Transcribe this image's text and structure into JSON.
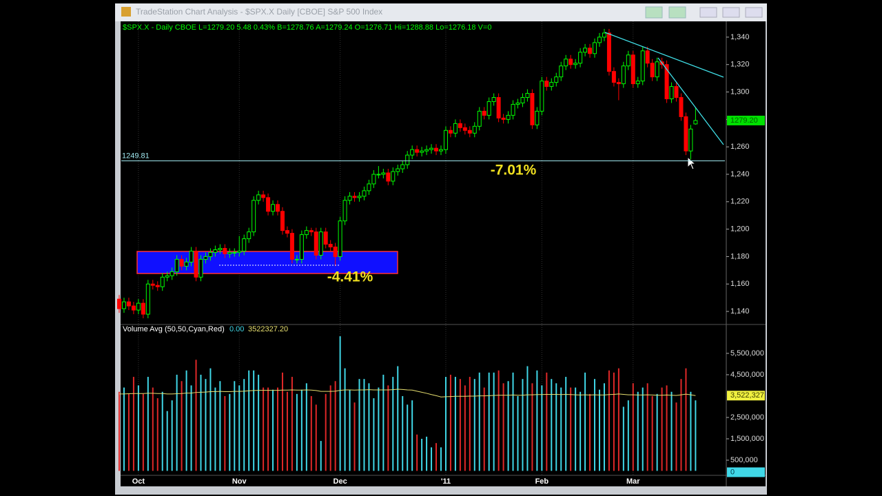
{
  "window": {
    "title": "TradeStation Chart Analysis - $SPX.X Daily [CBOE] S&P 500 Index"
  },
  "chart_data": {
    "type": "candlestick",
    "header": "$SPX.X - Daily  CBOE  L=1279.20  5.48  0.43%  B=1278.76  A=1279.24  O=1276.71  Hi=1288.88  Lo=1276.18  V=0",
    "up_color": "#00ff00",
    "down_color": "#ff0000",
    "categories": [
      null,
      null,
      null,
      null,
      "Oct",
      null,
      null,
      null,
      null,
      null,
      null,
      null,
      null,
      null,
      null,
      null,
      null,
      null,
      null,
      null,
      null,
      null,
      null,
      null,
      null,
      "Nov",
      null,
      null,
      null,
      null,
      null,
      null,
      null,
      null,
      null,
      null,
      null,
      null,
      null,
      null,
      null,
      null,
      null,
      null,
      null,
      null,
      "Dec",
      null,
      null,
      null,
      null,
      null,
      null,
      null,
      null,
      null,
      null,
      null,
      null,
      null,
      null,
      null,
      null,
      null,
      null,
      null,
      null,
      null,
      "'11",
      null,
      null,
      null,
      null,
      null,
      null,
      null,
      null,
      null,
      null,
      null,
      null,
      null,
      null,
      null,
      null,
      null,
      null,
      null,
      "Feb",
      null,
      null,
      null,
      null,
      null,
      null,
      null,
      null,
      null,
      null,
      null,
      null,
      null,
      null,
      null,
      null,
      null,
      null,
      "Mar",
      null,
      null,
      null,
      null,
      null,
      null,
      null,
      null,
      null,
      null,
      null,
      null,
      null
    ],
    "ohlc": [
      [
        1149,
        1152,
        1139,
        1142
      ],
      [
        1142,
        1150,
        1139,
        1147
      ],
      [
        1147,
        1150,
        1141,
        1144
      ],
      [
        1144,
        1147,
        1138,
        1141
      ],
      [
        1141,
        1149,
        1138,
        1146
      ],
      [
        1146,
        1149,
        1135,
        1138
      ],
      [
        1138,
        1163,
        1135,
        1160
      ],
      [
        1160,
        1163,
        1156,
        1159
      ],
      [
        1159,
        1162,
        1155,
        1158
      ],
      [
        1158,
        1168,
        1155,
        1165
      ],
      [
        1165,
        1169,
        1162,
        1166
      ],
      [
        1166,
        1172,
        1163,
        1169
      ],
      [
        1169,
        1181,
        1166,
        1178
      ],
      [
        1178,
        1181,
        1170,
        1173
      ],
      [
        1173,
        1179,
        1170,
        1176
      ],
      [
        1176,
        1187,
        1173,
        1184
      ],
      [
        1184,
        1187,
        1162,
        1165
      ],
      [
        1165,
        1181,
        1162,
        1178
      ],
      [
        1178,
        1183,
        1175,
        1180
      ],
      [
        1180,
        1186,
        1177,
        1183
      ],
      [
        1183,
        1188,
        1180,
        1185
      ],
      [
        1185,
        1189,
        1182,
        1186
      ],
      [
        1186,
        1189,
        1179,
        1182
      ],
      [
        1182,
        1186,
        1179,
        1183
      ],
      [
        1183,
        1186,
        1180,
        1183
      ],
      [
        1183,
        1195,
        1180,
        1184
      ],
      [
        1184,
        1196,
        1181,
        1193
      ],
      [
        1193,
        1201,
        1190,
        1198
      ],
      [
        1198,
        1224,
        1195,
        1221
      ],
      [
        1221,
        1228,
        1218,
        1225
      ],
      [
        1225,
        1228,
        1220,
        1223
      ],
      [
        1223,
        1226,
        1210,
        1213
      ],
      [
        1213,
        1221,
        1210,
        1218
      ],
      [
        1218,
        1221,
        1210,
        1213
      ],
      [
        1213,
        1216,
        1196,
        1199
      ],
      [
        1199,
        1202,
        1194,
        1197
      ],
      [
        1197,
        1200,
        1175,
        1178
      ],
      [
        1178,
        1181,
        1175,
        1178
      ],
      [
        1178,
        1199,
        1175,
        1196
      ],
      [
        1196,
        1202,
        1193,
        1199
      ],
      [
        1199,
        1201,
        1195,
        1198
      ],
      [
        1198,
        1201,
        1178,
        1181
      ],
      [
        1181,
        1201,
        1178,
        1198
      ],
      [
        1198,
        1201,
        1186,
        1189
      ],
      [
        1189,
        1192,
        1184,
        1187
      ],
      [
        1187,
        1190,
        1173,
        1180
      ],
      [
        1180,
        1209,
        1177,
        1206
      ],
      [
        1206,
        1224,
        1203,
        1221
      ],
      [
        1221,
        1227,
        1218,
        1224
      ],
      [
        1224,
        1227,
        1220,
        1223
      ],
      [
        1223,
        1227,
        1220,
        1224
      ],
      [
        1224,
        1231,
        1221,
        1228
      ],
      [
        1228,
        1236,
        1225,
        1233
      ],
      [
        1233,
        1243,
        1230,
        1240
      ],
      [
        1240,
        1246,
        1237,
        1240
      ],
      [
        1240,
        1244,
        1237,
        1241
      ],
      [
        1241,
        1244,
        1232,
        1235
      ],
      [
        1235,
        1245,
        1232,
        1242
      ],
      [
        1242,
        1247,
        1239,
        1244
      ],
      [
        1244,
        1250,
        1241,
        1247
      ],
      [
        1247,
        1257,
        1244,
        1254
      ],
      [
        1254,
        1261,
        1251,
        1258
      ],
      [
        1258,
        1261,
        1253,
        1256
      ],
      [
        1256,
        1260,
        1253,
        1257
      ],
      [
        1257,
        1261,
        1254,
        1258
      ],
      [
        1258,
        1262,
        1255,
        1259
      ],
      [
        1259,
        1262,
        1254,
        1257
      ],
      [
        1257,
        1261,
        1254,
        1258
      ],
      [
        1258,
        1275,
        1255,
        1272
      ],
      [
        1272,
        1275,
        1267,
        1270
      ],
      [
        1270,
        1280,
        1267,
        1277
      ],
      [
        1277,
        1280,
        1271,
        1274
      ],
      [
        1274,
        1277,
        1269,
        1272
      ],
      [
        1272,
        1275,
        1267,
        1270
      ],
      [
        1270,
        1278,
        1267,
        1275
      ],
      [
        1275,
        1289,
        1272,
        1286
      ],
      [
        1286,
        1289,
        1280,
        1283
      ],
      [
        1283,
        1296,
        1280,
        1293
      ],
      [
        1293,
        1299,
        1290,
        1296
      ],
      [
        1296,
        1299,
        1278,
        1281
      ],
      [
        1281,
        1284,
        1277,
        1280
      ],
      [
        1280,
        1286,
        1277,
        1283
      ],
      [
        1283,
        1294,
        1280,
        1291
      ],
      [
        1291,
        1295,
        1288,
        1292
      ],
      [
        1292,
        1299,
        1289,
        1296
      ],
      [
        1296,
        1302,
        1293,
        1299
      ],
      [
        1299,
        1302,
        1273,
        1276
      ],
      [
        1276,
        1289,
        1273,
        1286
      ],
      [
        1286,
        1311,
        1283,
        1308
      ],
      [
        1308,
        1311,
        1301,
        1304
      ],
      [
        1304,
        1310,
        1301,
        1307
      ],
      [
        1307,
        1314,
        1304,
        1311
      ],
      [
        1311,
        1322,
        1308,
        1319
      ],
      [
        1319,
        1327,
        1316,
        1324
      ],
      [
        1324,
        1327,
        1317,
        1320
      ],
      [
        1320,
        1324,
        1317,
        1321
      ],
      [
        1321,
        1332,
        1318,
        1329
      ],
      [
        1329,
        1335,
        1326,
        1332
      ],
      [
        1332,
        1335,
        1325,
        1328
      ],
      [
        1328,
        1339,
        1325,
        1336
      ],
      [
        1336,
        1343,
        1333,
        1340
      ],
      [
        1340,
        1346,
        1337,
        1343
      ],
      [
        1343,
        1346,
        1312,
        1315
      ],
      [
        1315,
        1318,
        1304,
        1307
      ],
      [
        1307,
        1310,
        1294,
        1306
      ],
      [
        1306,
        1322,
        1303,
        1319
      ],
      [
        1319,
        1330,
        1316,
        1327
      ],
      [
        1327,
        1330,
        1303,
        1306
      ],
      [
        1306,
        1311,
        1303,
        1308
      ],
      [
        1308,
        1333,
        1305,
        1330
      ],
      [
        1330,
        1333,
        1318,
        1321
      ],
      [
        1321,
        1324,
        1308,
        1311
      ],
      [
        1311,
        1325,
        1308,
        1322
      ],
      [
        1322,
        1325,
        1317,
        1320
      ],
      [
        1320,
        1323,
        1292,
        1295
      ],
      [
        1295,
        1307,
        1292,
        1304
      ],
      [
        1304,
        1307,
        1293,
        1296
      ],
      [
        1296,
        1299,
        1279,
        1282
      ],
      [
        1282,
        1285,
        1254,
        1257
      ],
      [
        1257,
        1276,
        1249,
        1273
      ],
      [
        1276.71,
        1288.88,
        1276.18,
        1279.2
      ]
    ],
    "ylim": [
      1131,
      1351
    ],
    "yticks": [
      {
        "value": 1140,
        "label": "1,140"
      },
      {
        "value": 1160,
        "label": "1,160"
      },
      {
        "value": 1180,
        "label": "1,180"
      },
      {
        "value": 1200,
        "label": "1,200"
      },
      {
        "value": 1220,
        "label": "1,220"
      },
      {
        "value": 1240,
        "label": "1,240"
      },
      {
        "value": 1260,
        "label": "1,260"
      },
      {
        "value": 1280,
        "label": "1,280"
      },
      {
        "value": 1300,
        "label": "1,300"
      },
      {
        "value": 1320,
        "label": "1,320"
      },
      {
        "value": 1340,
        "label": "1,340"
      }
    ],
    "last": {
      "value": 1279.2,
      "label": "1279.20"
    },
    "hline": 1249.81,
    "annotations": [
      "-7.01%",
      "-4.41%"
    ],
    "volume": {
      "title": "Volume Avg (50,50,Cyan,Red)",
      "readout": [
        "0.00",
        "3522327.20"
      ],
      "up_color": "#40d8e8",
      "down_color": "#e02828",
      "avg_color": "#e8e070",
      "values": [
        3700000,
        3900000,
        3600000,
        4400000,
        4000000,
        3600000,
        4400000,
        3900000,
        3400000,
        3700000,
        2800000,
        3300000,
        4500000,
        4200000,
        4700000,
        4000000,
        5200000,
        4500000,
        4300000,
        4800000,
        3900000,
        4200000,
        3500000,
        3600000,
        4200000,
        4000000,
        4300000,
        4700000,
        4700000,
        4500000,
        3900000,
        3900000,
        3800000,
        3900000,
        4600000,
        3700000,
        4400000,
        3600000,
        3800000,
        4100000,
        3500000,
        3100000,
        1400000,
        3600000,
        4000000,
        4200000,
        6300000,
        4800000,
        3800000,
        3200000,
        4300000,
        4300000,
        4100000,
        3400000,
        3900000,
        4500000,
        4000000,
        4400000,
        4900000,
        3500000,
        3100000,
        3300000,
        1700000,
        1500000,
        1600000,
        1100000,
        1300000,
        1100000,
        4400000,
        4500000,
        4400000,
        4300000,
        4000000,
        4400000,
        4300000,
        4600000,
        3900000,
        4600000,
        4600000,
        4700000,
        4100000,
        4200000,
        4600000,
        3500000,
        4300000,
        4900000,
        4100000,
        4700000,
        4000000,
        4600000,
        4300000,
        4100000,
        3900000,
        4400000,
        3900000,
        3900000,
        3700000,
        4600000,
        3600000,
        4300000,
        3800000,
        4100000,
        4700000,
        4600000,
        4800000,
        3000000,
        3300000,
        4100000,
        3700000,
        3900000,
        4100000,
        3500000,
        3600000,
        3900000,
        4000000,
        3700000,
        3200000,
        4300000,
        4800000,
        3700000,
        3300000
      ],
      "avg": [
        3600000,
        3600000,
        3610000,
        3620000,
        3620000,
        3620000,
        3630000,
        3630000,
        3620000,
        3620000,
        3600000,
        3600000,
        3610000,
        3620000,
        3640000,
        3640000,
        3670000,
        3680000,
        3690000,
        3710000,
        3710000,
        3720000,
        3710000,
        3710000,
        3720000,
        3720000,
        3730000,
        3750000,
        3760000,
        3770000,
        3770000,
        3770000,
        3770000,
        3770000,
        3780000,
        3780000,
        3790000,
        3780000,
        3780000,
        3790000,
        3780000,
        3760000,
        3720000,
        3720000,
        3720000,
        3730000,
        3770000,
        3790000,
        3790000,
        3780000,
        3790000,
        3790000,
        3800000,
        3790000,
        3790000,
        3790000,
        3790000,
        3800000,
        3820000,
        3810000,
        3790000,
        3780000,
        3730000,
        3680000,
        3630000,
        3570000,
        3520000,
        3460000,
        3470000,
        3480000,
        3490000,
        3490000,
        3490000,
        3500000,
        3500000,
        3510000,
        3510000,
        3520000,
        3530000,
        3540000,
        3540000,
        3540000,
        3550000,
        3540000,
        3540000,
        3560000,
        3560000,
        3570000,
        3570000,
        3580000,
        3580000,
        3580000,
        3570000,
        3580000,
        3570000,
        3560000,
        3550000,
        3560000,
        3550000,
        3560000,
        3550000,
        3550000,
        3570000,
        3580000,
        3600000,
        3580000,
        3560000,
        3560000,
        3550000,
        3550000,
        3560000,
        3550000,
        3540000,
        3540000,
        3550000,
        3540000,
        3530000,
        3560000,
        3590000,
        3560000,
        3522327.2
      ],
      "ylim": [
        0,
        6820000
      ],
      "yticks": [
        {
          "value": 500000,
          "label": "500,000"
        },
        {
          "value": 1500000,
          "label": "1,500,000"
        },
        {
          "value": 2500000,
          "label": "2,500,000"
        },
        {
          "value": 4500000,
          "label": "4,500,000"
        },
        {
          "value": 5500000,
          "label": "5,500,000"
        }
      ],
      "avg_last": {
        "value": 3522327.2,
        "label": "3,522,327"
      },
      "current": 0
    }
  }
}
